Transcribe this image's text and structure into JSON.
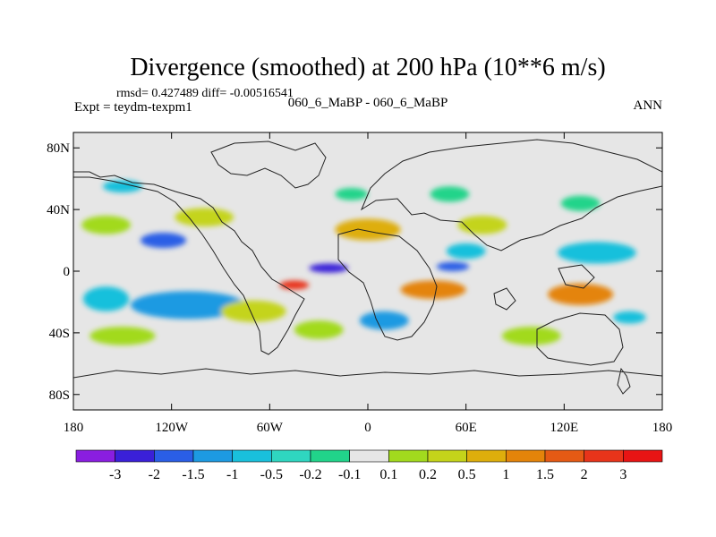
{
  "chart_data": {
    "type": "heatmap",
    "title": "Divergence (smoothed) at 200 hPa (10**6 m/s)",
    "stats_line": "rmsd= 0.427489  diff= -0.00516541",
    "case_label": "060_6_MaBP - 060_6_MaBP",
    "expt_label": "Expt = teydm-texpm1",
    "season_label": "ANN",
    "xlim": [
      -180,
      180
    ],
    "ylim": [
      -90,
      90
    ],
    "x_ticks": [
      {
        "value": -180,
        "label": "180"
      },
      {
        "value": -120,
        "label": "120W"
      },
      {
        "value": -60,
        "label": "60W"
      },
      {
        "value": 0,
        "label": "0"
      },
      {
        "value": 60,
        "label": "60E"
      },
      {
        "value": 120,
        "label": "120E"
      },
      {
        "value": 180,
        "label": "180"
      }
    ],
    "y_ticks": [
      {
        "value": 80,
        "label": "80N"
      },
      {
        "value": 40,
        "label": "40N"
      },
      {
        "value": 0,
        "label": "0"
      },
      {
        "value": -40,
        "label": "40S"
      },
      {
        "value": -80,
        "label": "80S"
      }
    ],
    "colorbar": {
      "levels": [
        "-3",
        "-2",
        "-1.5",
        "-1",
        "-0.5",
        "-0.2",
        "-0.1",
        "0.1",
        "0.2",
        "0.5",
        "1",
        "1.5",
        "2",
        "3"
      ],
      "colors": [
        "#8a1ee0",
        "#3a20d8",
        "#2a5ee6",
        "#1d9ae2",
        "#19c0dc",
        "#2fd6c0",
        "#21d48a",
        "#e6e6e6",
        "#a2da1e",
        "#c4d41a",
        "#deae0c",
        "#e4840a",
        "#e55a14",
        "#e8341a",
        "#e81414"
      ]
    },
    "field_blobs": [
      {
        "lon": -24,
        "lat": 2,
        "rlon": 12,
        "rlat": 3,
        "color": "#3a20d8"
      },
      {
        "lon": 52,
        "lat": 3,
        "rlon": 10,
        "rlat": 3,
        "color": "#2a5ee6"
      },
      {
        "lon": -45,
        "lat": -9,
        "rlon": 9,
        "rlat": 3,
        "color": "#e8341a"
      },
      {
        "lon": -125,
        "lat": 20,
        "rlon": 14,
        "rlat": 5,
        "color": "#2a5ee6"
      },
      {
        "lon": 40,
        "lat": -12,
        "rlon": 20,
        "rlat": 6,
        "color": "#e4840a"
      },
      {
        "lon": 130,
        "lat": -15,
        "rlon": 20,
        "rlat": 7,
        "color": "#e4840a"
      },
      {
        "lon": 0,
        "lat": 27,
        "rlon": 20,
        "rlat": 7,
        "color": "#deae0c"
      },
      {
        "lon": 140,
        "lat": 12,
        "rlon": 24,
        "rlat": 7,
        "color": "#19c0dc"
      },
      {
        "lon": -110,
        "lat": -22,
        "rlon": 35,
        "rlat": 9,
        "color": "#1d9ae2"
      },
      {
        "lon": -160,
        "lat": -18,
        "rlon": 14,
        "rlat": 8,
        "color": "#19c0dc"
      },
      {
        "lon": -70,
        "lat": -26,
        "rlon": 20,
        "rlat": 7,
        "color": "#c4d41a"
      },
      {
        "lon": 10,
        "lat": -32,
        "rlon": 15,
        "rlat": 6,
        "color": "#1d9ae2"
      },
      {
        "lon": 60,
        "lat": 13,
        "rlon": 12,
        "rlat": 5,
        "color": "#19c0dc"
      },
      {
        "lon": -100,
        "lat": 35,
        "rlon": 18,
        "rlat": 6,
        "color": "#c4d41a"
      },
      {
        "lon": 70,
        "lat": 30,
        "rlon": 15,
        "rlat": 6,
        "color": "#c4d41a"
      },
      {
        "lon": -150,
        "lat": -42,
        "rlon": 20,
        "rlat": 6,
        "color": "#a2da1e"
      },
      {
        "lon": 100,
        "lat": -42,
        "rlon": 18,
        "rlat": 6,
        "color": "#a2da1e"
      },
      {
        "lon": -30,
        "lat": -38,
        "rlon": 15,
        "rlat": 6,
        "color": "#a2da1e"
      },
      {
        "lon": -150,
        "lat": 55,
        "rlon": 12,
        "rlat": 4,
        "color": "#19c0dc"
      },
      {
        "lon": -10,
        "lat": 50,
        "rlon": 10,
        "rlat": 4,
        "color": "#21d48a"
      },
      {
        "lon": 50,
        "lat": 50,
        "rlon": 12,
        "rlat": 5,
        "color": "#21d48a"
      },
      {
        "lon": 130,
        "lat": 44,
        "rlon": 12,
        "rlat": 5,
        "color": "#21d48a"
      },
      {
        "lon": -160,
        "lat": 30,
        "rlon": 15,
        "rlat": 6,
        "color": "#a2da1e"
      },
      {
        "lon": 160,
        "lat": -30,
        "rlon": 10,
        "rlat": 4,
        "color": "#19c0dc"
      }
    ]
  }
}
